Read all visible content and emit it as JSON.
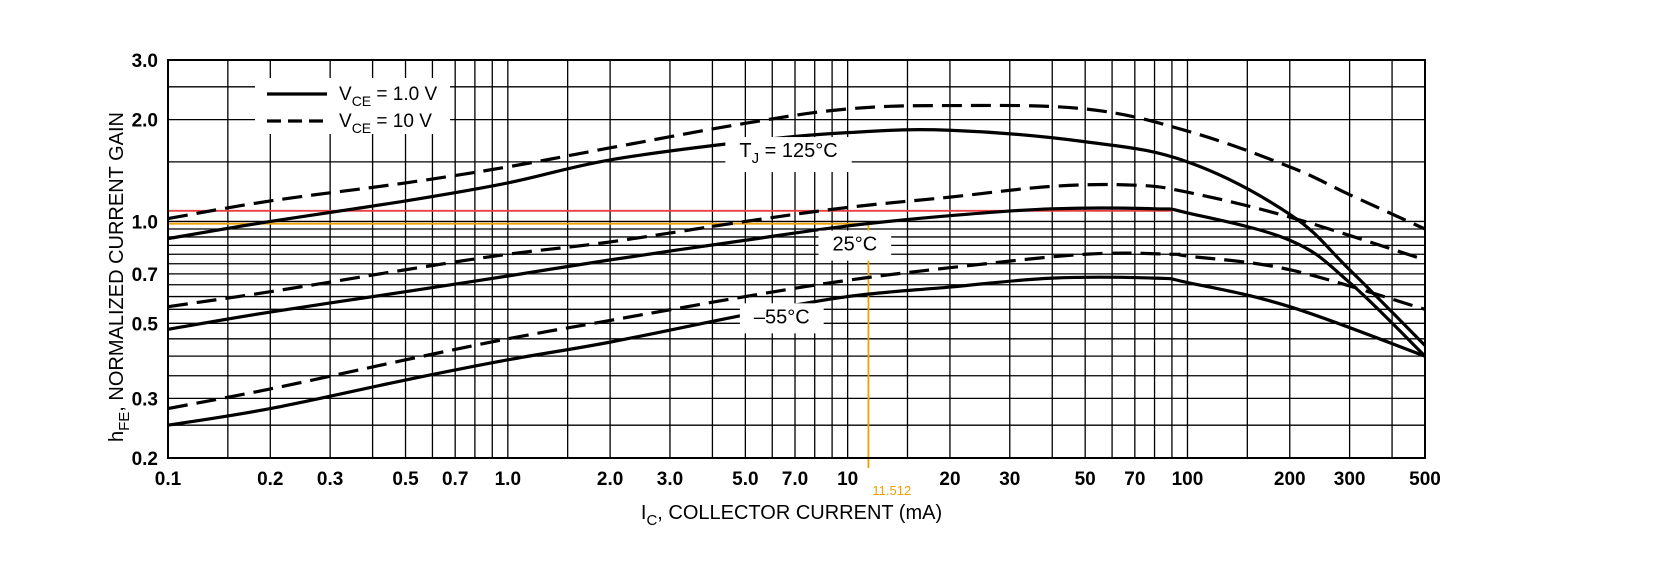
{
  "chart_data": {
    "type": "line",
    "title": "",
    "xlabel": {
      "main": "I",
      "sub": "C",
      "rest": ", COLLECTOR CURRENT (mA)"
    },
    "ylabel": {
      "main": "h",
      "sub": "FE",
      "rest": ", NORMALIZED CURRENT GAIN"
    },
    "x_scale": "log",
    "y_scale": "log",
    "xlim": [
      0.1,
      500
    ],
    "ylim": [
      0.2,
      3.0
    ],
    "grid": true,
    "x_ticks": [
      {
        "v": 0.1,
        "label": "0.1"
      },
      {
        "v": 0.2,
        "label": "0.2"
      },
      {
        "v": 0.3,
        "label": "0.3"
      },
      {
        "v": 0.5,
        "label": "0.5"
      },
      {
        "v": 0.7,
        "label": "0.7"
      },
      {
        "v": 1,
        "label": "1.0"
      },
      {
        "v": 2,
        "label": "2.0"
      },
      {
        "v": 3,
        "label": "3.0"
      },
      {
        "v": 5,
        "label": "5.0"
      },
      {
        "v": 7,
        "label": "7.0"
      },
      {
        "v": 10,
        "label": "10"
      },
      {
        "v": 20,
        "label": "20"
      },
      {
        "v": 30,
        "label": "30"
      },
      {
        "v": 50,
        "label": "50"
      },
      {
        "v": 70,
        "label": "70"
      },
      {
        "v": 100,
        "label": "100"
      },
      {
        "v": 200,
        "label": "200"
      },
      {
        "v": 300,
        "label": "300"
      },
      {
        "v": 500,
        "label": "500"
      }
    ],
    "y_ticks": [
      {
        "v": 0.2,
        "label": "0.2"
      },
      {
        "v": 0.3,
        "label": "0.3"
      },
      {
        "v": 0.5,
        "label": "0.5"
      },
      {
        "v": 0.7,
        "label": "0.7"
      },
      {
        "v": 1.0,
        "label": "1.0"
      },
      {
        "v": 2.0,
        "label": "2.0"
      },
      {
        "v": 3.0,
        "label": "3.0"
      }
    ],
    "x_grid": [
      0.1,
      0.15,
      0.2,
      0.3,
      0.4,
      0.5,
      0.6,
      0.7,
      0.8,
      0.9,
      1,
      1.5,
      2,
      3,
      4,
      5,
      6,
      7,
      8,
      9,
      10,
      15,
      20,
      30,
      40,
      50,
      60,
      70,
      80,
      90,
      100,
      150,
      200,
      300,
      400,
      500
    ],
    "y_grid": [
      0.2,
      0.25,
      0.3,
      0.35,
      0.4,
      0.45,
      0.5,
      0.55,
      0.6,
      0.65,
      0.7,
      0.75,
      0.8,
      0.85,
      0.9,
      0.95,
      1.0,
      1.5,
      2.0,
      2.5,
      3.0
    ],
    "legend": {
      "position": "top-left",
      "entries": [
        {
          "main": "V",
          "sub": "CE",
          "rest": " = 1.0 V",
          "style": "solid"
        },
        {
          "main": "V",
          "sub": "CE",
          "rest": " = 10 V",
          "style": "dashed"
        }
      ]
    },
    "series": [
      {
        "style": "dashed",
        "group": "125",
        "points": [
          [
            0.1,
            1.02
          ],
          [
            0.2,
            1.15
          ],
          [
            0.5,
            1.3
          ],
          [
            1,
            1.45
          ],
          [
            2,
            1.65
          ],
          [
            5,
            1.95
          ],
          [
            10,
            2.15
          ],
          [
            20,
            2.2
          ],
          [
            50,
            2.15
          ],
          [
            100,
            1.85
          ],
          [
            200,
            1.45
          ],
          [
            300,
            1.2
          ],
          [
            500,
            0.95
          ]
        ]
      },
      {
        "style": "solid",
        "group": "125",
        "points": [
          [
            0.1,
            0.89
          ],
          [
            0.2,
            1.0
          ],
          [
            0.5,
            1.15
          ],
          [
            1,
            1.3
          ],
          [
            2,
            1.52
          ],
          [
            5,
            1.72
          ],
          [
            10,
            1.83
          ],
          [
            20,
            1.86
          ],
          [
            50,
            1.72
          ],
          [
            100,
            1.5
          ],
          [
            200,
            1.05
          ],
          [
            300,
            0.72
          ],
          [
            500,
            0.43
          ]
        ]
      },
      {
        "style": "dashed",
        "group": "25",
        "points": [
          [
            0.1,
            0.56
          ],
          [
            0.2,
            0.62
          ],
          [
            0.5,
            0.72
          ],
          [
            1,
            0.8
          ],
          [
            2,
            0.87
          ],
          [
            5,
            1.0
          ],
          [
            10,
            1.1
          ],
          [
            20,
            1.18
          ],
          [
            40,
            1.27
          ],
          [
            70,
            1.28
          ],
          [
            100,
            1.22
          ],
          [
            200,
            1.03
          ],
          [
            500,
            0.77
          ]
        ]
      },
      {
        "style": "solid",
        "group": "25",
        "points": [
          [
            0.1,
            0.48
          ],
          [
            0.2,
            0.54
          ],
          [
            0.5,
            0.62
          ],
          [
            1,
            0.69
          ],
          [
            2,
            0.77
          ],
          [
            5,
            0.88
          ],
          [
            10,
            0.97
          ],
          [
            20,
            1.04
          ],
          [
            40,
            1.09
          ],
          [
            80,
            1.09
          ],
          [
            100,
            1.06
          ],
          [
            200,
            0.88
          ],
          [
            300,
            0.66
          ],
          [
            500,
            0.4
          ]
        ]
      },
      {
        "style": "dashed",
        "group": "-55",
        "points": [
          [
            0.1,
            0.28
          ],
          [
            0.2,
            0.32
          ],
          [
            0.5,
            0.39
          ],
          [
            1,
            0.45
          ],
          [
            2,
            0.51
          ],
          [
            5,
            0.6
          ],
          [
            10,
            0.67
          ],
          [
            20,
            0.73
          ],
          [
            50,
            0.8
          ],
          [
            90,
            0.8
          ],
          [
            100,
            0.79
          ],
          [
            200,
            0.72
          ],
          [
            500,
            0.55
          ]
        ]
      },
      {
        "style": "solid",
        "group": "-55",
        "points": [
          [
            0.1,
            0.25
          ],
          [
            0.2,
            0.28
          ],
          [
            0.5,
            0.34
          ],
          [
            1,
            0.39
          ],
          [
            2,
            0.44
          ],
          [
            5,
            0.53
          ],
          [
            10,
            0.6
          ],
          [
            20,
            0.64
          ],
          [
            40,
            0.68
          ],
          [
            80,
            0.68
          ],
          [
            100,
            0.66
          ],
          [
            200,
            0.56
          ],
          [
            500,
            0.4
          ]
        ]
      }
    ],
    "annotations": [
      {
        "main": "T",
        "sub": "J",
        "rest": " = 125°C",
        "x": 6.7,
        "y": 1.55
      },
      {
        "main": "25°C",
        "sub": "",
        "rest": "",
        "x": 10.5,
        "y": 0.82
      },
      {
        "main": "–55°C",
        "sub": "",
        "rest": "",
        "x": 6.4,
        "y": 0.5
      }
    ],
    "reference_lines": [
      {
        "orientation": "horizontal",
        "y": 1.075,
        "x_from": 0.1,
        "x_to": 90,
        "color": "#e84040"
      },
      {
        "orientation": "horizontal",
        "y": 0.985,
        "x_from": 0.1,
        "x_to": 11.512,
        "color": "#f0a000"
      },
      {
        "orientation": "vertical",
        "x": 11.512,
        "y_from": 0.2,
        "y_to": 0.985,
        "color": "#f0a000"
      }
    ],
    "cursor_label": {
      "text": "11.512",
      "x": 11.512
    }
  }
}
